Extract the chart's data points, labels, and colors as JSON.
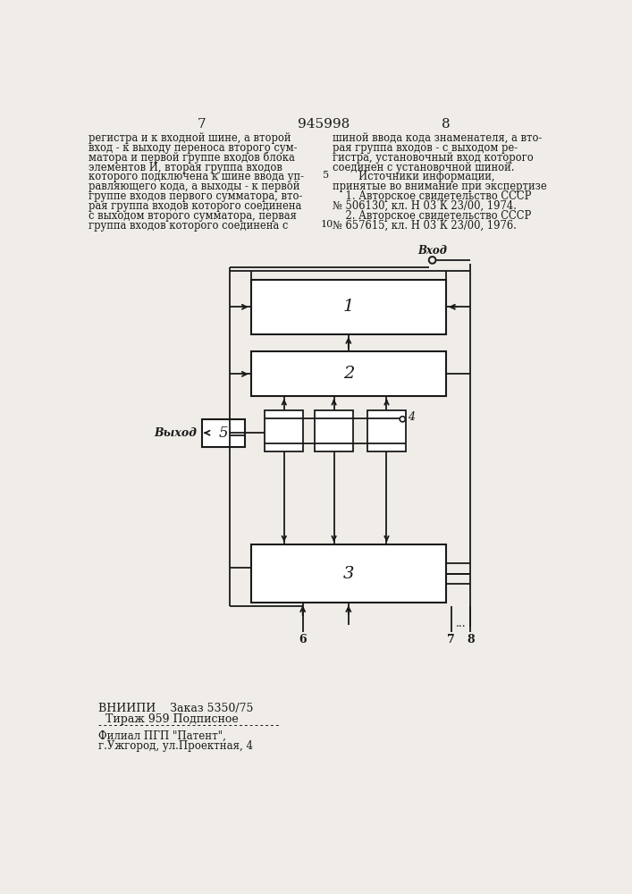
{
  "page_numbers": [
    "7",
    "945998",
    "8"
  ],
  "left_text": [
    "регистра и к входной шине, а второй",
    "вход - к выходу переноса второго сум-",
    "матора и первой группе входов блока",
    "элементов И, вторая группа входов",
    "которого подключена к шине ввода уп-",
    "равляющего кода, а выходы - к первой",
    "группе входов первого сумматора, вто-",
    "рая группа входов которого соединена",
    "с выходом второго сумматора, первая",
    "группа входов которого соединена с"
  ],
  "right_text": [
    "шиной ввода кода знаменателя, а вто-",
    "рая группа входов - с выходом ре-",
    "гистра, установочный вход которого",
    "соединен с установочной шиной.",
    "        Источники информации,",
    "принятые во внимание при экспертизе",
    "    1. Авторское свидетельство СССР",
    "№ 506130, кл. Н 03 К 23/00, 1974.",
    "    2. Авторское свидетельство СССР",
    "№ 657615, кл. Н 03 К 23/00, 1976."
  ],
  "footer_text1": "ВНИИПИ    Заказ 5350/75",
  "footer_text2": "  Тираж 959 Подписное",
  "footer_text3": "Филиал ПГП \"Патент\",",
  "footer_text4": "г.Ужгород, ул.Проектная, 4",
  "bg_color": "#f0ede8",
  "box_color": "#1a1a1a",
  "line_color": "#1a1a1a"
}
